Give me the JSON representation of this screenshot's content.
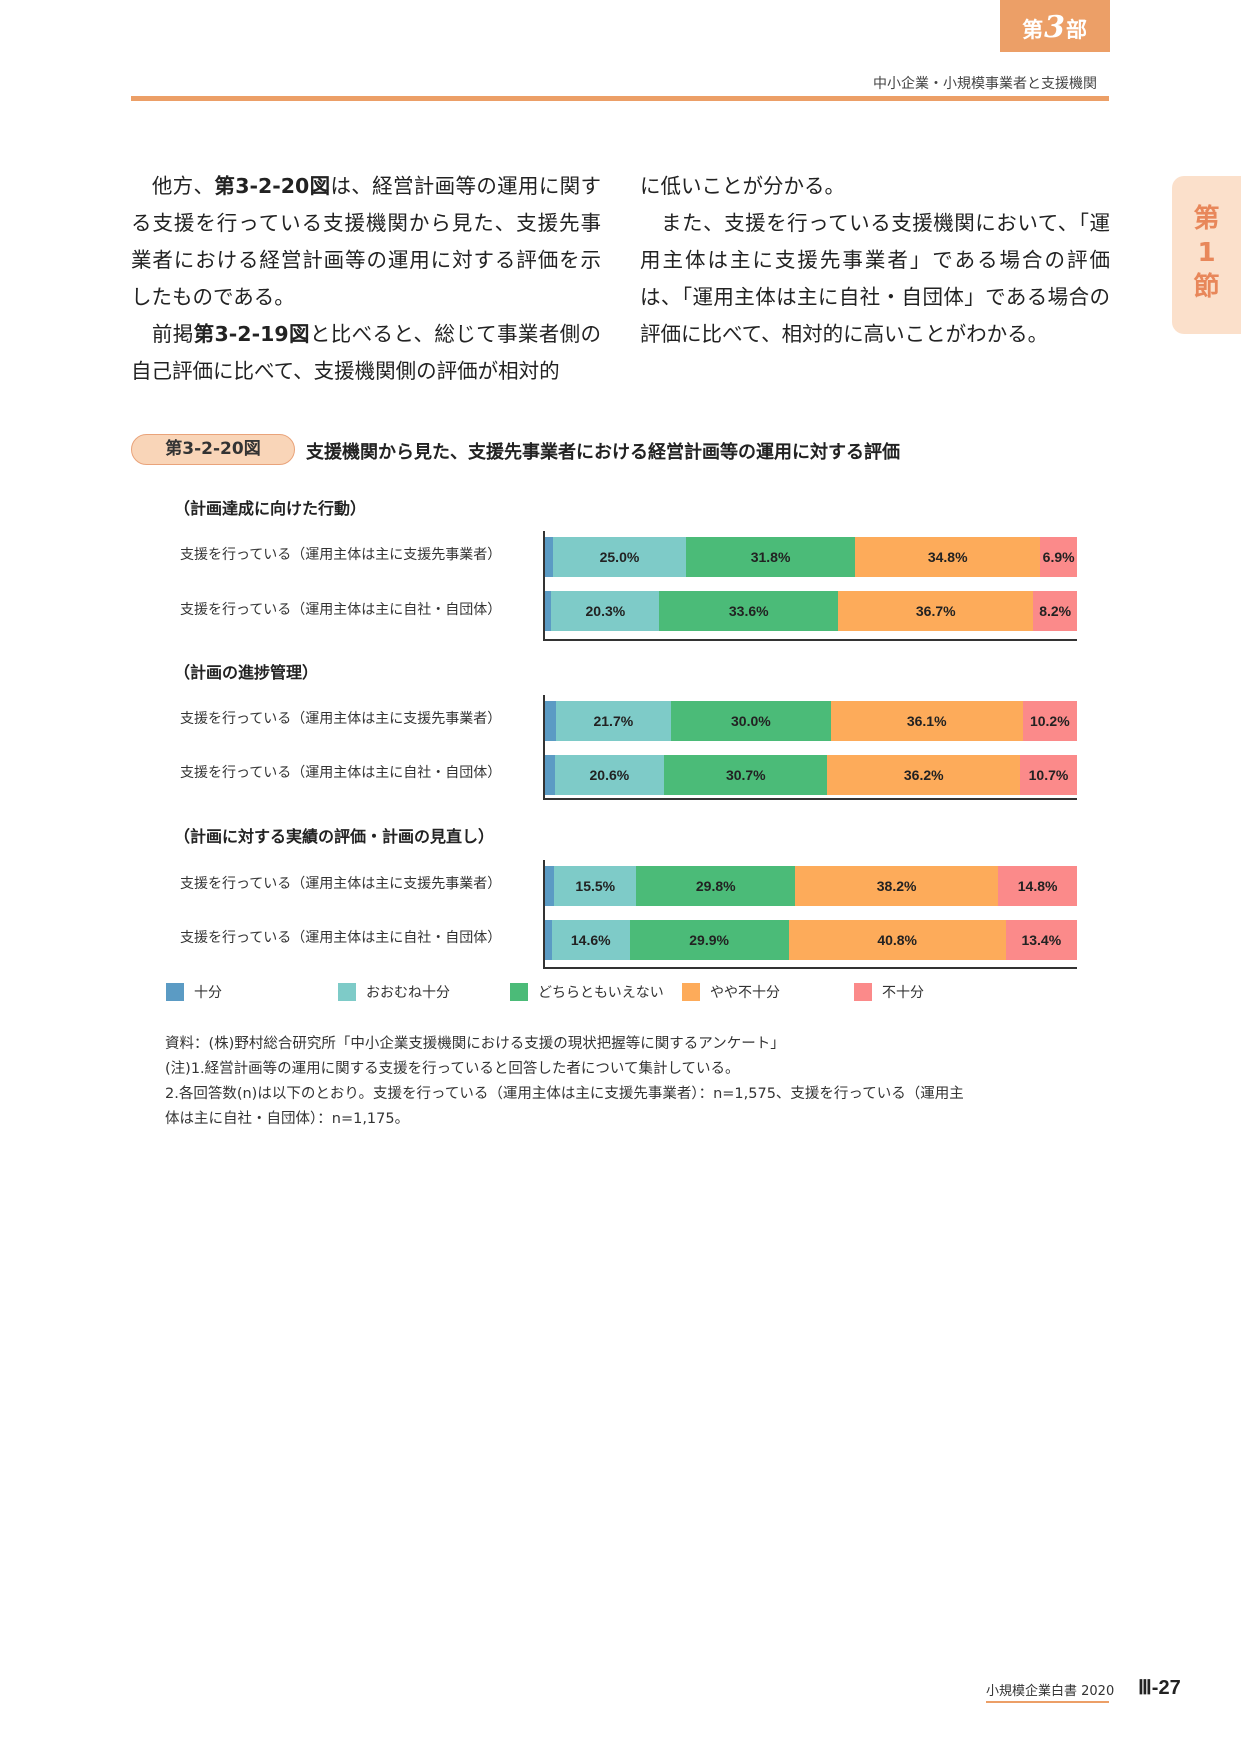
{
  "header": {
    "part_prefix": "第",
    "part_number": "3",
    "part_suffix": "部",
    "subtitle": "中小企業・小規模事業者と支援機関"
  },
  "section_tab": [
    "第",
    "1",
    "節"
  ],
  "body_left": {
    "p1_a": "他方、",
    "p1_ref": "第3-2-20図",
    "p1_b": "は、経営計画等の運用に関する支援を行っている支援機関から見た、支援先事業者における経営計画等の運用に対する評価を示したものである。",
    "p2_a": "前掲",
    "p2_ref": "第3-2-19図",
    "p2_b": "と比べると、総じて事業者側の自己評価に比べて、支援機関側の評価が相対的"
  },
  "body_right": {
    "p1": "に低いことが分かる。",
    "p2": "また、支援を行っている支援機関において、「運用主体は主に支援先事業者」である場合の評価は、「運用主体は主に自社・自団体」である場合の評価に比べて、相対的に高いことがわかる。"
  },
  "figure": {
    "label": "第3-2-20図",
    "title": "支援機関から見た、支援先事業者における経営計画等の運用に対する評価"
  },
  "chart_data": {
    "type": "bar",
    "orientation": "horizontal-stacked-100",
    "categories": [
      "支援を行っている（運用主体は主に支援先事業者）",
      "支援を行っている（運用主体は主に自社・自団体）"
    ],
    "legend_position": "bottom",
    "series_names": [
      "十分",
      "おおむね十分",
      "どちらともいえない",
      "やや不十分",
      "不十分"
    ],
    "colors": [
      "#5b9bc4",
      "#7ecbc8",
      "#4bbb78",
      "#fdab5a",
      "#fb8a8a"
    ],
    "groups": [
      {
        "title": "（計画達成に向けた行動）",
        "rows": [
          {
            "values": [
              1.5,
              25.0,
              31.8,
              34.8,
              6.9
            ],
            "labels": [
              "",
              "25.0%",
              "31.8%",
              "34.8%",
              "6.9%"
            ]
          },
          {
            "values": [
              1.2,
              20.3,
              33.6,
              36.7,
              8.2
            ],
            "labels": [
              "",
              "20.3%",
              "33.6%",
              "36.7%",
              "8.2%"
            ]
          }
        ]
      },
      {
        "title": "（計画の進捗管理）",
        "rows": [
          {
            "values": [
              2.0,
              21.7,
              30.0,
              36.1,
              10.2
            ],
            "labels": [
              "",
              "21.7%",
              "30.0%",
              "36.1%",
              "10.2%"
            ]
          },
          {
            "values": [
              1.8,
              20.6,
              30.7,
              36.2,
              10.7
            ],
            "labels": [
              "",
              "20.6%",
              "30.7%",
              "36.2%",
              "10.7%"
            ]
          }
        ]
      },
      {
        "title": "（計画に対する実績の評価・計画の見直し）",
        "rows": [
          {
            "values": [
              1.7,
              15.5,
              29.8,
              38.2,
              14.8
            ],
            "labels": [
              "",
              "15.5%",
              "29.8%",
              "38.2%",
              "14.8%"
            ]
          },
          {
            "values": [
              1.3,
              14.6,
              29.9,
              40.8,
              13.4
            ],
            "labels": [
              "",
              "14.6%",
              "29.9%",
              "40.8%",
              "13.4%"
            ]
          }
        ]
      }
    ]
  },
  "notes": {
    "source": "資料：(株)野村総合研究所「中小企業支援機関における支援の現状把握等に関するアンケート」",
    "note1": "(注)1.経営計画等の運用に関する支援を行っていると回答した者について集計している。",
    "note2a": "2.各回答数(n)は以下のとおり。支援を行っている（運用主体は主に支援先事業者）：n=1,575、支援を行っている（運用主",
    "note2b": "体は主に自社・自団体）：n=1,175。"
  },
  "footer": {
    "title": "小規模企業白書  2020",
    "page": "Ⅲ-27"
  }
}
